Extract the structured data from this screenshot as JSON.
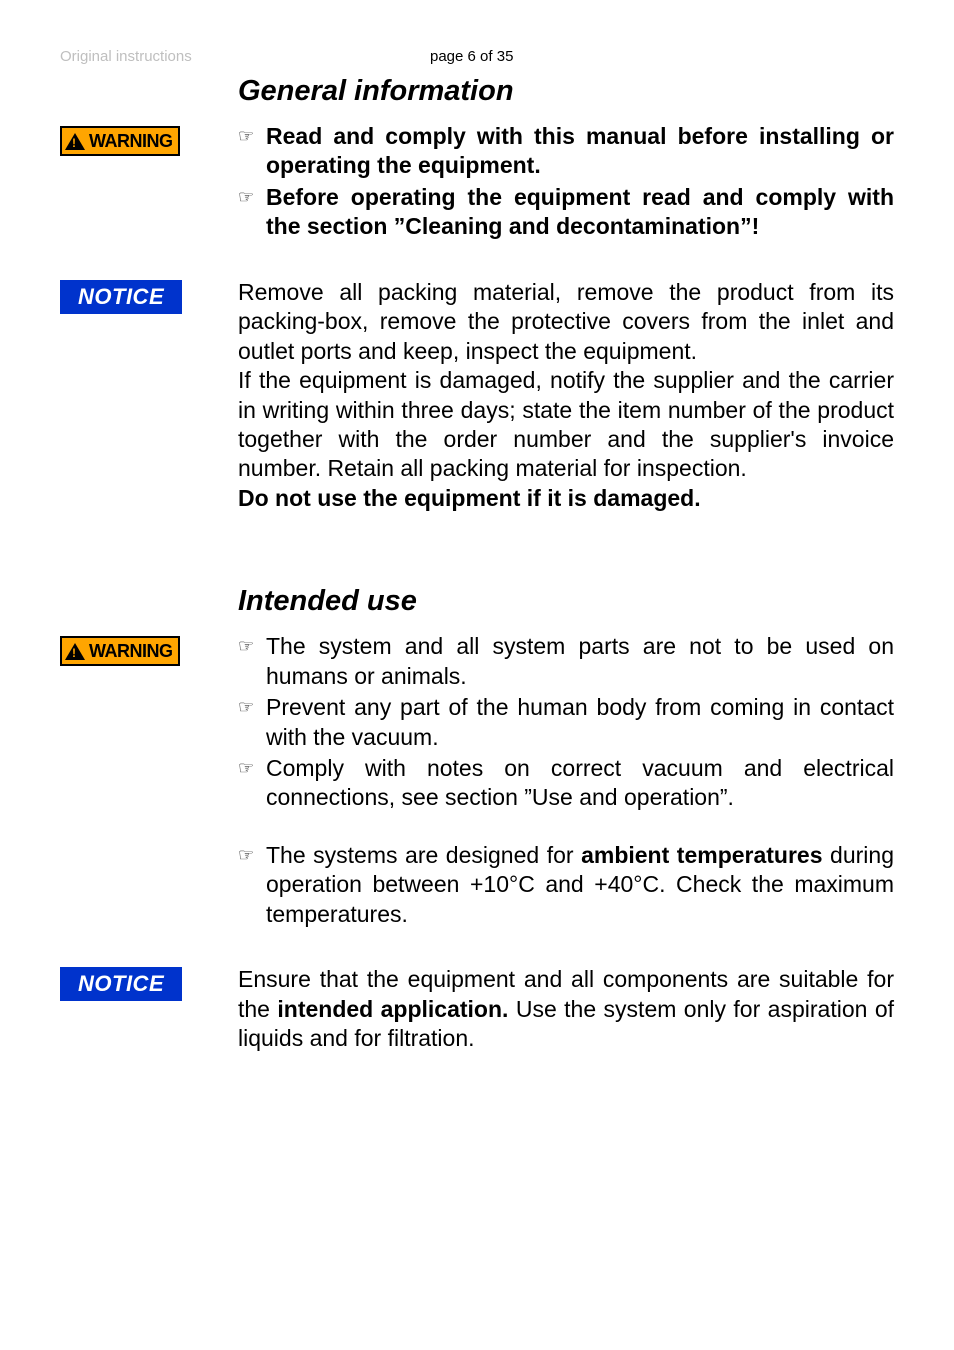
{
  "header": {
    "original_instructions": "Original instructions",
    "page_label": "page 6 of 35"
  },
  "section1": {
    "title": "General information",
    "warning": {
      "badge": "WARNING",
      "bullets": [
        "Read and comply with this manual before installing or operating the equipment.",
        "Before operating the equipment read and comply with the section ”Cleaning and decontamination”!"
      ]
    },
    "notice": {
      "badge": "NOTICE",
      "para1": "Remove all packing material, remove the product from its packing-box, remove the protective covers from the inlet and outlet ports and keep, inspect the equipment.",
      "para2": "If the equipment is damaged, notify the supplier and the carrier in writing within three days; state the item number of the product together with the order number and the supplier's invoice number. Retain all packing material for inspection.",
      "para3_bold": "Do not use the equipment if it is damaged."
    }
  },
  "section2": {
    "title": "Intended use",
    "warning": {
      "badge": "WARNING",
      "bullets": [
        "The system and all system parts are not to be used on humans or animals.",
        "Prevent any part of the human body from coming in contact with the vacuum.",
        "Comply with notes on correct vacuum and electrical connections, see section ”Use and operation”."
      ],
      "bullets2_pre": "The systems are designed for ",
      "bullets2_bold": "ambient temperatures",
      "bullets2_post": " during operation between +10°C and +40°C. Check the maximum temperatures."
    },
    "notice": {
      "badge": "NOTICE",
      "para_pre": "Ensure that the equipment and all components are suitable for the ",
      "para_bold": "intended application.",
      "para_post": " Use the system only for aspiration of liquids and for filtration."
    }
  },
  "colors": {
    "warning_bg": "#ffa500",
    "notice_bg": "#0033cc",
    "grey_text": "#bfbfbf"
  }
}
